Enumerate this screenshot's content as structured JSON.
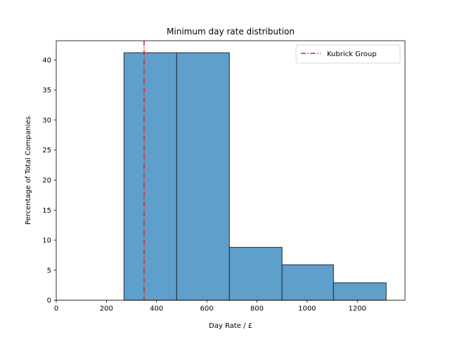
{
  "chart_data": {
    "type": "histogram",
    "title": "Minimum day rate distribution",
    "xlabel": "Day Rate / £",
    "ylabel": "Percentage of Total Companies",
    "xlim": [
      0,
      1390
    ],
    "ylim": [
      0,
      43.2
    ],
    "xticks": [
      0,
      200,
      400,
      600,
      800,
      1000,
      1200
    ],
    "yticks": [
      0,
      5,
      10,
      15,
      20,
      25,
      30,
      35,
      40
    ],
    "bins": [
      {
        "x0": 270,
        "x1": 480,
        "value": 41.2
      },
      {
        "x0": 480,
        "x1": 690,
        "value": 41.2
      },
      {
        "x0": 690,
        "x1": 900,
        "value": 8.8
      },
      {
        "x0": 900,
        "x1": 1105,
        "value": 5.9
      },
      {
        "x0": 1105,
        "x1": 1315,
        "value": 2.9
      }
    ],
    "bar_color": "#5f9fcc",
    "bar_edge_color": "#1f2a33",
    "reference_line": {
      "label": "Kubrick Group",
      "x": 350,
      "color": "#e41a1c",
      "style": "dash-dot"
    },
    "legend_location": "top-right"
  }
}
